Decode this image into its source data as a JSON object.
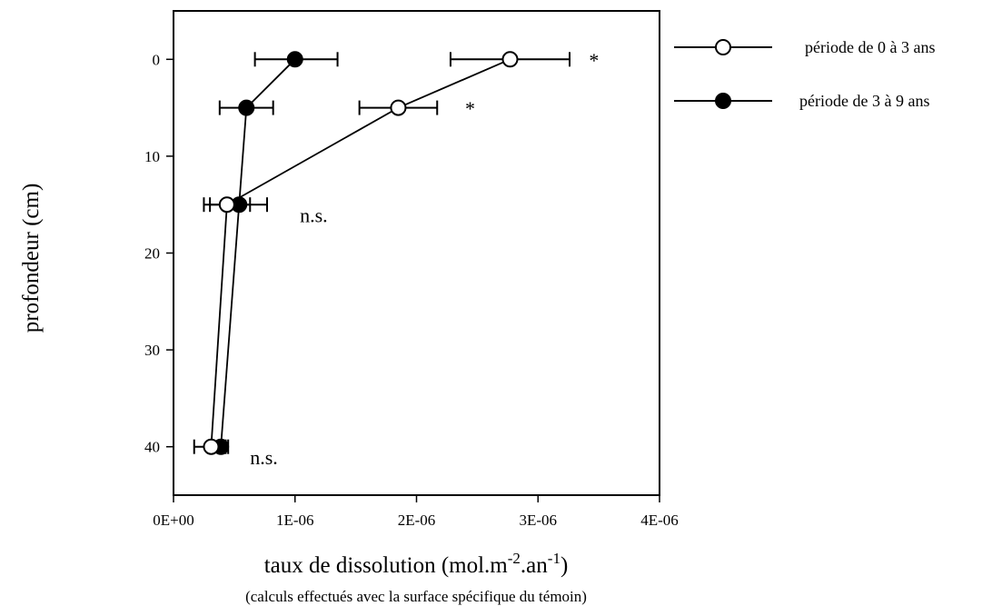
{
  "chart_data": {
    "type": "line",
    "xlabel_main": "taux de dissolution (mol.m",
    "xlabel_sup1": "-2",
    "xlabel_mid": ".an",
    "xlabel_sup2": "-1",
    "xlabel_end": ")",
    "xlabel_note": "(calculs effectués avec la surface spécifique du témoin)",
    "ylabel": "profondeur (cm)",
    "xlim": [
      0,
      4e-06
    ],
    "ylim": [
      45,
      -5
    ],
    "y_inverted": true,
    "x_ticks": [
      {
        "value": 0,
        "label": "0E+00"
      },
      {
        "value": 1e-06,
        "label": "1E-06"
      },
      {
        "value": 2e-06,
        "label": "2E-06"
      },
      {
        "value": 3e-06,
        "label": "3E-06"
      },
      {
        "value": 4e-06,
        "label": "4E-06"
      }
    ],
    "y_ticks": [
      {
        "value": 0,
        "label": "0"
      },
      {
        "value": 10,
        "label": "10"
      },
      {
        "value": 20,
        "label": "20"
      },
      {
        "value": 30,
        "label": "30"
      },
      {
        "value": 40,
        "label": "40"
      }
    ],
    "grid": false,
    "legend_position": "right",
    "series": [
      {
        "name": "période de 0 à 3 ans",
        "marker": "open-circle",
        "color": "#000000",
        "points": [
          {
            "depth": 0,
            "rate": 2.77e-06,
            "err_low": 2.28e-06,
            "err_high": 3.26e-06
          },
          {
            "depth": 5,
            "rate": 1.85e-06,
            "err_low": 1.53e-06,
            "err_high": 2.17e-06
          },
          {
            "depth": 15,
            "rate": 4.4e-07,
            "err_low": 2.5e-07,
            "err_high": 6.3e-07
          },
          {
            "depth": 40,
            "rate": 3.1e-07,
            "err_low": 1.7e-07,
            "err_high": 4.3e-07
          }
        ]
      },
      {
        "name": "période de 3 à 9 ans",
        "marker": "filled-circle",
        "color": "#000000",
        "points": [
          {
            "depth": 0,
            "rate": 1e-06,
            "err_low": 6.7e-07,
            "err_high": 1.35e-06
          },
          {
            "depth": 5,
            "rate": 6e-07,
            "err_low": 3.8e-07,
            "err_high": 8.2e-07
          },
          {
            "depth": 15,
            "rate": 5.4e-07,
            "err_low": 3e-07,
            "err_high": 7.7e-07
          },
          {
            "depth": 40,
            "rate": 3.9e-07,
            "err_low": 3.1e-07,
            "err_high": 4.5e-07
          }
        ]
      }
    ],
    "annotations": [
      {
        "text": "*",
        "x": 3.42e-06,
        "y": 0.8
      },
      {
        "text": "*",
        "x": 2.4e-06,
        "y": 5.8
      },
      {
        "text": "n.s.",
        "x": 1.04e-06,
        "y": 16.8
      },
      {
        "text": "n.s.",
        "x": 6.3e-07,
        "y": 41.8
      }
    ]
  }
}
